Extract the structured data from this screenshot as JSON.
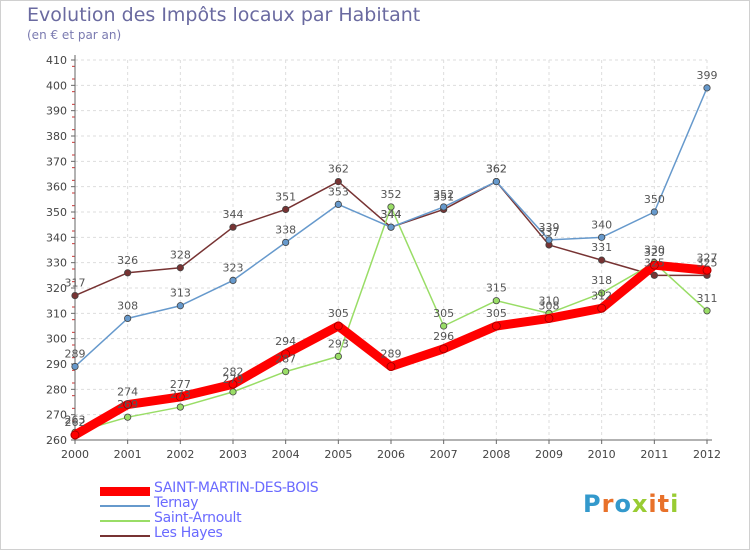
{
  "header": {
    "title": "Evolution des Impôts locaux par Habitant",
    "subtitle": "(en € et par an)"
  },
  "brand": {
    "logo_text": "Proxiti"
  },
  "chart_data": {
    "type": "line",
    "title": "Evolution des Impôts locaux par Habitant",
    "subtitle": "(en € et par an)",
    "xlabel": "",
    "ylabel": "",
    "x": [
      "2000",
      "2001",
      "2002",
      "2003",
      "2004",
      "2005",
      "2006",
      "2007",
      "2008",
      "2009",
      "2010",
      "2011",
      "2012"
    ],
    "ylim": [
      260,
      410
    ],
    "yticks": [
      260,
      270,
      280,
      290,
      300,
      310,
      320,
      330,
      340,
      350,
      360,
      370,
      380,
      390,
      400,
      410
    ],
    "grid": true,
    "legend_position": "bottom-left",
    "series": [
      {
        "name": "SAINT-MARTIN-DES-BOIS",
        "color": "#ff0000",
        "values": [
          262,
          274,
          277,
          282,
          294,
          305,
          289,
          296,
          305,
          308,
          312,
          329,
          327
        ]
      },
      {
        "name": "Ternay",
        "color": "#6699cc",
        "values": [
          289,
          308,
          313,
          323,
          338,
          353,
          344,
          352,
          362,
          339,
          340,
          350,
          399
        ]
      },
      {
        "name": "Saint-Arnoult",
        "color": "#99dd66",
        "values": [
          263,
          269,
          273,
          279,
          287,
          293,
          352,
          305,
          315,
          310,
          318,
          330,
          311
        ]
      },
      {
        "name": "Les Hayes",
        "color": "#773333",
        "values": [
          317,
          326,
          328,
          344,
          351,
          362,
          344,
          351,
          362,
          337,
          331,
          325,
          325
        ]
      }
    ]
  }
}
